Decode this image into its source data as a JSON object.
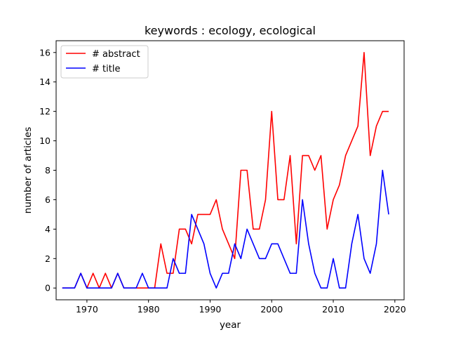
{
  "chart_data": {
    "type": "line",
    "title": "keywords : ecology, ecological",
    "xlabel": "year",
    "ylabel": "number of articles",
    "xlim": [
      1965,
      2021.5
    ],
    "ylim": [
      -0.8,
      16.8
    ],
    "xticks": [
      1970,
      1980,
      1990,
      2000,
      2010,
      2020
    ],
    "yticks": [
      0,
      2,
      4,
      6,
      8,
      10,
      12,
      14,
      16
    ],
    "grid": false,
    "legend_position": "upper-left",
    "x": [
      1966,
      1967,
      1968,
      1969,
      1970,
      1971,
      1972,
      1973,
      1974,
      1975,
      1976,
      1977,
      1978,
      1979,
      1980,
      1981,
      1982,
      1983,
      1984,
      1985,
      1986,
      1987,
      1988,
      1989,
      1990,
      1991,
      1992,
      1993,
      1994,
      1995,
      1996,
      1997,
      1998,
      1999,
      2000,
      2001,
      2002,
      2003,
      2004,
      2005,
      2006,
      2007,
      2008,
      2009,
      2010,
      2011,
      2012,
      2013,
      2014,
      2015,
      2016,
      2017,
      2018,
      2019
    ],
    "series": [
      {
        "name": "# abstract",
        "color": "#ff0000",
        "values": [
          0,
          0,
          0,
          1,
          0,
          1,
          0,
          1,
          0,
          1,
          0,
          0,
          0,
          0,
          0,
          0,
          3,
          1,
          1,
          4,
          4,
          3,
          5,
          5,
          5,
          6,
          4,
          3,
          2,
          8,
          8,
          4,
          4,
          6,
          12,
          6,
          6,
          9,
          3,
          9,
          9,
          8,
          9,
          4,
          6,
          7,
          9,
          10,
          11,
          16,
          9,
          11,
          12,
          12
        ]
      },
      {
        "name": "# title",
        "color": "#0000ff",
        "values": [
          0,
          0,
          0,
          1,
          0,
          0,
          0,
          0,
          0,
          1,
          0,
          0,
          0,
          1,
          0,
          0,
          0,
          0,
          2,
          1,
          1,
          5,
          4,
          3,
          1,
          0,
          1,
          1,
          3,
          2,
          4,
          3,
          2,
          2,
          3,
          3,
          2,
          1,
          1,
          6,
          3,
          1,
          0,
          0,
          2,
          0,
          0,
          3,
          5,
          2,
          1,
          3,
          8,
          5
        ]
      }
    ]
  }
}
